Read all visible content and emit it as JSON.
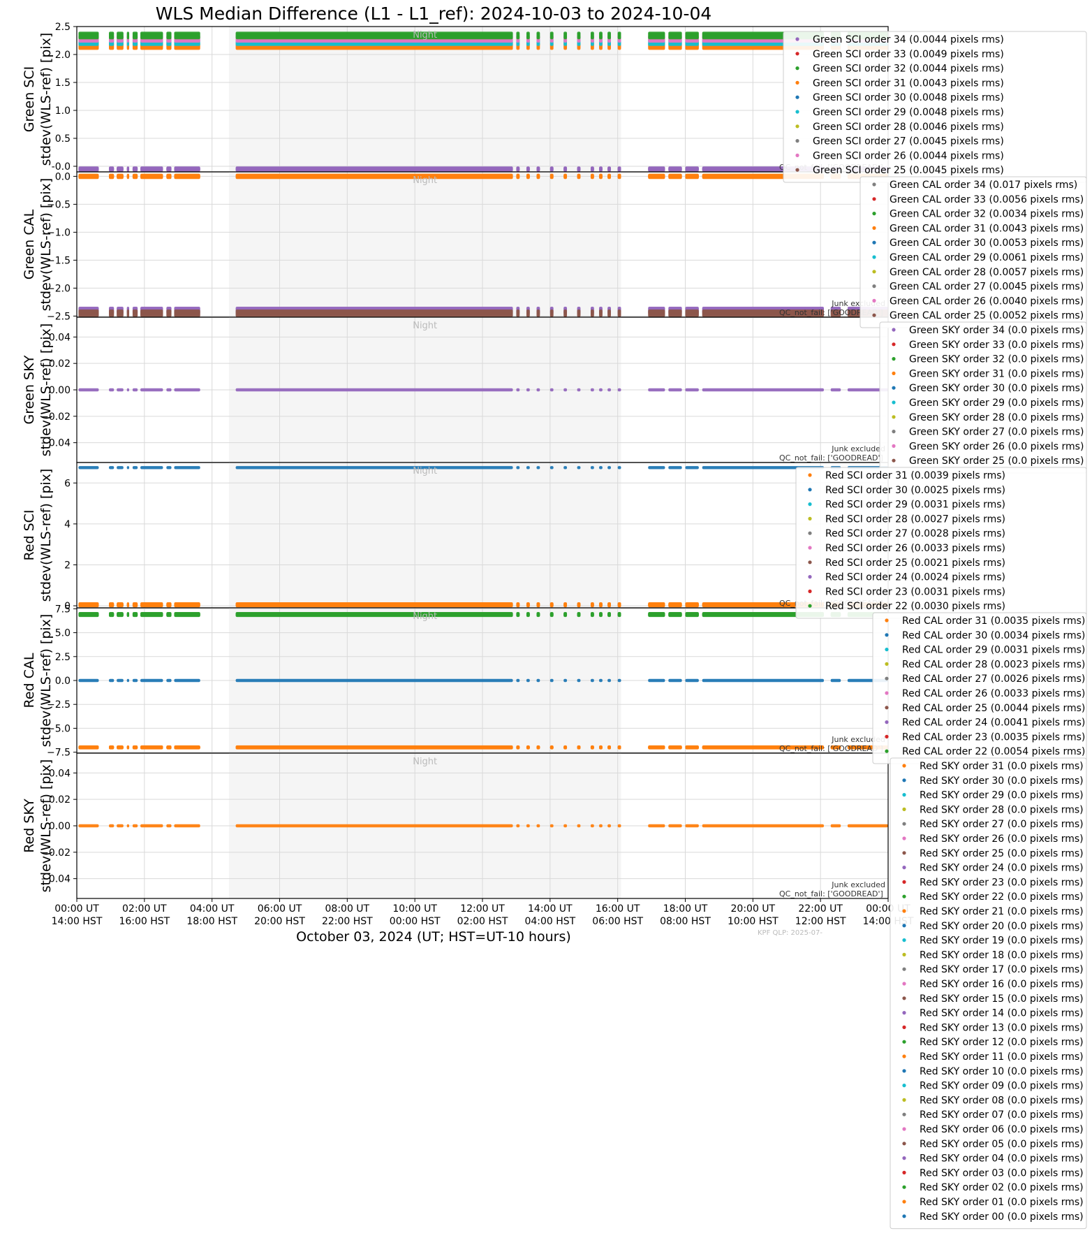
{
  "figure": {
    "title": "WLS Median Difference (L1 - L1_ref): 2024-10-03 to 2024-10-04",
    "xlabel": "October 03, 2024 (UT; HST=UT-10 hours)",
    "xtick_labels_ut": [
      "00:00 UT",
      "02:00 UT",
      "04:00 UT",
      "06:00 UT",
      "08:00 UT",
      "10:00 UT",
      "12:00 UT",
      "14:00 UT",
      "16:00 UT",
      "18:00 UT",
      "20:00 UT",
      "22:00 UT",
      "00:00 UT"
    ],
    "xtick_labels_hst": [
      "14:00 HST",
      "16:00 HST",
      "18:00 HST",
      "20:00 HST",
      "22:00 HST",
      "00:00 HST",
      "02:00 HST",
      "04:00 HST",
      "06:00 HST",
      "08:00 HST",
      "10:00 HST",
      "12:00 HST",
      "14:00 HST"
    ],
    "night_label": "Night",
    "junk_label": "Junk excluded",
    "qc_label": "QC_not_fail: ['GOODREAD']",
    "footer": "KPF QLP: 2025-07-"
  },
  "colors": {
    "blue": "#1f77b4",
    "orange": "#ff7f0e",
    "green": "#2ca02c",
    "red": "#d62728",
    "purple": "#9467bd",
    "brown": "#8c564b",
    "pink": "#e377c2",
    "gray": "#7f7f7f",
    "olive": "#bcbd22",
    "cyan": "#17becf",
    "night_shade": "#f5f5f5",
    "grid": "#d9d9d9"
  },
  "chart_data": [
    {
      "type": "scatter",
      "ylabel": [
        "Green SCI",
        "stdev(WLS-ref) [pix]"
      ],
      "ylim": [
        -0.1,
        2.5
      ],
      "yticks": [
        "-0.0",
        "0.5",
        "1.0",
        "1.5",
        "2.0",
        "2.5"
      ],
      "ytick_values": [
        0.0,
        0.5,
        1.0,
        1.5,
        2.0,
        2.5
      ],
      "xlim_hours": [
        0,
        24
      ],
      "night_hours": [
        4.5,
        16.1
      ],
      "level_groups": [
        {
          "y": 2.15,
          "spread": 0.04,
          "color": "orange"
        },
        {
          "y": 2.22,
          "spread": 0.04,
          "color": "cyan"
        },
        {
          "y": 2.28,
          "spread": 0.04,
          "color": "pink"
        },
        {
          "y": 2.34,
          "spread": 0.04,
          "color": "green"
        },
        {
          "y": -0.05,
          "spread": 0.02,
          "color": "purple"
        }
      ],
      "series": [
        {
          "name": "Green SCI order 34 (0.0044 pixels rms)",
          "color": "purple"
        },
        {
          "name": "Green SCI order 33 (0.0049 pixels rms)",
          "color": "red"
        },
        {
          "name": "Green SCI order 32 (0.0044 pixels rms)",
          "color": "green"
        },
        {
          "name": "Green SCI order 31 (0.0043 pixels rms)",
          "color": "orange"
        },
        {
          "name": "Green SCI order 30 (0.0048 pixels rms)",
          "color": "blue"
        },
        {
          "name": "Green SCI order 29 (0.0048 pixels rms)",
          "color": "cyan"
        },
        {
          "name": "Green SCI order 28 (0.0046 pixels rms)",
          "color": "olive"
        },
        {
          "name": "Green SCI order 27 (0.0045 pixels rms)",
          "color": "gray"
        },
        {
          "name": "Green SCI order 26 (0.0044 pixels rms)",
          "color": "pink"
        },
        {
          "name": "Green SCI order 25 (0.0045 pixels rms)",
          "color": "brown"
        }
      ],
      "legend_left": 1122,
      "show_junk": false
    },
    {
      "type": "scatter",
      "ylabel": [
        "Green CAL",
        "stdev(WLS-ref) [pix]"
      ],
      "ylim": [
        -2.52,
        0.08
      ],
      "yticks": [
        "0.0",
        "−0.5",
        "−1.0",
        "−1.5",
        "−2.0",
        "−2.5"
      ],
      "ytick_values": [
        0.0,
        -0.5,
        -1.0,
        -1.5,
        -2.0,
        -2.5
      ],
      "xlim_hours": [
        0,
        24
      ],
      "night_hours": [
        4.5,
        16.1
      ],
      "level_groups": [
        {
          "y": 0.0,
          "spread": 0.02,
          "color": "orange"
        },
        {
          "y": -2.4,
          "spread": 0.04,
          "color": "purple"
        },
        {
          "y": -2.45,
          "spread": 0.04,
          "color": "brown"
        }
      ],
      "series": [
        {
          "name": "Green CAL order 34 (0.017 pixels rms)",
          "color": "gray"
        },
        {
          "name": "Green CAL order 33 (0.0056 pixels rms)",
          "color": "red"
        },
        {
          "name": "Green CAL order 32 (0.0034 pixels rms)",
          "color": "green"
        },
        {
          "name": "Green CAL order 31 (0.0043 pixels rms)",
          "color": "orange"
        },
        {
          "name": "Green CAL order 30 (0.0053 pixels rms)",
          "color": "blue"
        },
        {
          "name": "Green CAL order 29 (0.0061 pixels rms)",
          "color": "cyan"
        },
        {
          "name": "Green CAL order 28 (0.0057 pixels rms)",
          "color": "olive"
        },
        {
          "name": "Green CAL order 27 (0.0045 pixels rms)",
          "color": "gray"
        },
        {
          "name": "Green CAL order 26 (0.0040 pixels rms)",
          "color": "pink"
        },
        {
          "name": "Green CAL order 25 (0.0052 pixels rms)",
          "color": "brown"
        }
      ],
      "legend_left": 1232,
      "show_junk": true
    },
    {
      "type": "scatter",
      "ylabel": [
        "Green SKY",
        "stdev(WLS-ref) [pix]"
      ],
      "ylim": [
        -0.055,
        0.055
      ],
      "yticks": [
        "0.04",
        "0.02",
        "0.00",
        "−0.02",
        "−0.04"
      ],
      "ytick_values": [
        0.04,
        0.02,
        0.0,
        -0.02,
        -0.04
      ],
      "xlim_hours": [
        0,
        24
      ],
      "night_hours": [
        4.5,
        16.1
      ],
      "level_groups": [
        {
          "y": 0.0,
          "spread": 0.0,
          "color": "purple"
        }
      ],
      "series": [
        {
          "name": "Green SKY order 34 (0.0 pixels rms)",
          "color": "purple"
        },
        {
          "name": "Green SKY order 33 (0.0 pixels rms)",
          "color": "red"
        },
        {
          "name": "Green SKY order 32 (0.0 pixels rms)",
          "color": "green"
        },
        {
          "name": "Green SKY order 31 (0.0 pixels rms)",
          "color": "orange"
        },
        {
          "name": "Green SKY order 30 (0.0 pixels rms)",
          "color": "blue"
        },
        {
          "name": "Green SKY order 29 (0.0 pixels rms)",
          "color": "cyan"
        },
        {
          "name": "Green SKY order 28 (0.0 pixels rms)",
          "color": "olive"
        },
        {
          "name": "Green SKY order 27 (0.0 pixels rms)",
          "color": "gray"
        },
        {
          "name": "Green SKY order 26 (0.0 pixels rms)",
          "color": "pink"
        },
        {
          "name": "Green SKY order 25 (0.0 pixels rms)",
          "color": "brown"
        }
      ],
      "legend_left": 1260,
      "show_junk": true
    },
    {
      "type": "scatter",
      "ylabel": [
        "Red SCI",
        "stdev(WLS-ref) [pix]"
      ],
      "ylim": [
        -0.1,
        7.0
      ],
      "yticks": [
        "6",
        "4",
        "2",
        "0"
      ],
      "ytick_values": [
        6,
        4,
        2,
        0
      ],
      "xlim_hours": [
        0,
        24
      ],
      "night_hours": [
        4.5,
        16.1
      ],
      "level_groups": [
        {
          "y": 6.75,
          "spread": 0.0,
          "color": "blue"
        },
        {
          "y": 0.05,
          "spread": 0.05,
          "color": "orange"
        }
      ],
      "series": [
        {
          "name": "Red SCI order 31 (0.0039 pixels rms)",
          "color": "orange"
        },
        {
          "name": "Red SCI order 30 (0.0025 pixels rms)",
          "color": "blue"
        },
        {
          "name": "Red SCI order 29 (0.0031 pixels rms)",
          "color": "cyan"
        },
        {
          "name": "Red SCI order 28 (0.0027 pixels rms)",
          "color": "olive"
        },
        {
          "name": "Red SCI order 27 (0.0028 pixels rms)",
          "color": "gray"
        },
        {
          "name": "Red SCI order 26 (0.0033 pixels rms)",
          "color": "pink"
        },
        {
          "name": "Red SCI order 25 (0.0021 pixels rms)",
          "color": "brown"
        },
        {
          "name": "Red SCI order 24 (0.0024 pixels rms)",
          "color": "purple"
        },
        {
          "name": "Red SCI order 23 (0.0031 pixels rms)",
          "color": "red"
        },
        {
          "name": "Red SCI order 22 (0.0030 pixels rms)",
          "color": "green"
        }
      ],
      "legend_left": 1140,
      "show_junk": false
    },
    {
      "type": "scatter",
      "ylabel": [
        "Red CAL",
        "stdev(WLS-ref) [pix]"
      ],
      "ylim": [
        -7.6,
        7.6
      ],
      "yticks": [
        "7.5",
        "5.0",
        "2.5",
        "0.0",
        "−2.5",
        "−5.0",
        "−7.5"
      ],
      "ytick_values": [
        7.5,
        5.0,
        2.5,
        0.0,
        -2.5,
        -5.0,
        -7.5
      ],
      "xlim_hours": [
        0,
        24
      ],
      "night_hours": [
        4.5,
        16.1
      ],
      "level_groups": [
        {
          "y": 6.9,
          "spread": 0.1,
          "color": "green"
        },
        {
          "y": 0.0,
          "spread": 0.0,
          "color": "blue"
        },
        {
          "y": -7.0,
          "spread": 0.05,
          "color": "orange"
        }
      ],
      "series": [
        {
          "name": "Red CAL order 31 (0.0035 pixels rms)",
          "color": "orange"
        },
        {
          "name": "Red CAL order 30 (0.0034 pixels rms)",
          "color": "blue"
        },
        {
          "name": "Red CAL order 29 (0.0031 pixels rms)",
          "color": "cyan"
        },
        {
          "name": "Red CAL order 28 (0.0023 pixels rms)",
          "color": "olive"
        },
        {
          "name": "Red CAL order 27 (0.0026 pixels rms)",
          "color": "gray"
        },
        {
          "name": "Red CAL order 26 (0.0033 pixels rms)",
          "color": "pink"
        },
        {
          "name": "Red CAL order 25 (0.0044 pixels rms)",
          "color": "brown"
        },
        {
          "name": "Red CAL order 24 (0.0041 pixels rms)",
          "color": "purple"
        },
        {
          "name": "Red CAL order 23 (0.0035 pixels rms)",
          "color": "red"
        },
        {
          "name": "Red CAL order 22 (0.0054 pixels rms)",
          "color": "green"
        }
      ],
      "legend_left": 1250,
      "show_junk": true
    },
    {
      "type": "scatter",
      "ylabel": [
        "Red SKY",
        "stdev(WLS-ref) [pix]"
      ],
      "ylim": [
        -0.055,
        0.055
      ],
      "yticks": [
        "0.04",
        "0.02",
        "0.00",
        "−0.02",
        "−0.04"
      ],
      "ytick_values": [
        0.04,
        0.02,
        0.0,
        -0.02,
        -0.04
      ],
      "xlim_hours": [
        0,
        24
      ],
      "night_hours": [
        4.5,
        16.1
      ],
      "level_groups": [
        {
          "y": 0.0,
          "spread": 0.0,
          "color": "orange"
        }
      ],
      "series": [
        {
          "name": "Red SKY order 31 (0.0 pixels rms)",
          "color": "orange"
        },
        {
          "name": "Red SKY order 30 (0.0 pixels rms)",
          "color": "blue"
        },
        {
          "name": "Red SKY order 29 (0.0 pixels rms)",
          "color": "cyan"
        },
        {
          "name": "Red SKY order 28 (0.0 pixels rms)",
          "color": "olive"
        },
        {
          "name": "Red SKY order 27 (0.0 pixels rms)",
          "color": "gray"
        },
        {
          "name": "Red SKY order 26 (0.0 pixels rms)",
          "color": "pink"
        },
        {
          "name": "Red SKY order 25 (0.0 pixels rms)",
          "color": "brown"
        },
        {
          "name": "Red SKY order 24 (0.0 pixels rms)",
          "color": "purple"
        },
        {
          "name": "Red SKY order 23 (0.0 pixels rms)",
          "color": "red"
        },
        {
          "name": "Red SKY order 22 (0.0 pixels rms)",
          "color": "green"
        },
        {
          "name": "Red SKY order 21 (0.0 pixels rms)",
          "color": "orange"
        },
        {
          "name": "Red SKY order 20 (0.0 pixels rms)",
          "color": "blue"
        },
        {
          "name": "Red SKY order 19 (0.0 pixels rms)",
          "color": "cyan"
        },
        {
          "name": "Red SKY order 18 (0.0 pixels rms)",
          "color": "olive"
        },
        {
          "name": "Red SKY order 17 (0.0 pixels rms)",
          "color": "gray"
        },
        {
          "name": "Red SKY order 16 (0.0 pixels rms)",
          "color": "pink"
        },
        {
          "name": "Red SKY order 15 (0.0 pixels rms)",
          "color": "brown"
        },
        {
          "name": "Red SKY order 14 (0.0 pixels rms)",
          "color": "purple"
        },
        {
          "name": "Red SKY order 13 (0.0 pixels rms)",
          "color": "red"
        },
        {
          "name": "Red SKY order 12 (0.0 pixels rms)",
          "color": "green"
        },
        {
          "name": "Red SKY order 11 (0.0 pixels rms)",
          "color": "orange"
        },
        {
          "name": "Red SKY order 10 (0.0 pixels rms)",
          "color": "blue"
        },
        {
          "name": "Red SKY order 09 (0.0 pixels rms)",
          "color": "cyan"
        },
        {
          "name": "Red SKY order 08 (0.0 pixels rms)",
          "color": "olive"
        },
        {
          "name": "Red SKY order 07 (0.0 pixels rms)",
          "color": "gray"
        },
        {
          "name": "Red SKY order 06 (0.0 pixels rms)",
          "color": "pink"
        },
        {
          "name": "Red SKY order 05 (0.0 pixels rms)",
          "color": "brown"
        },
        {
          "name": "Red SKY order 04 (0.0 pixels rms)",
          "color": "purple"
        },
        {
          "name": "Red SKY order 03 (0.0 pixels rms)",
          "color": "red"
        },
        {
          "name": "Red SKY order 02 (0.0 pixels rms)",
          "color": "green"
        },
        {
          "name": "Red SKY order 01 (0.0 pixels rms)",
          "color": "orange"
        },
        {
          "name": "Red SKY order 00 (0.0 pixels rms)",
          "color": "blue"
        }
      ],
      "legend_left": 1275,
      "show_junk": true
    }
  ],
  "observation_segments_hours": [
    [
      0.05,
      0.65
    ],
    [
      0.95,
      1.1
    ],
    [
      1.18,
      1.38
    ],
    [
      1.48,
      1.55
    ],
    [
      1.65,
      1.8
    ],
    [
      1.88,
      2.55
    ],
    [
      2.65,
      2.8
    ],
    [
      2.88,
      3.65
    ],
    [
      4.7,
      12.9
    ],
    [
      13.0,
      13.1
    ],
    [
      13.3,
      13.4
    ],
    [
      13.6,
      13.7
    ],
    [
      14.0,
      14.1
    ],
    [
      14.4,
      14.5
    ],
    [
      14.8,
      14.9
    ],
    [
      15.2,
      15.3
    ],
    [
      15.45,
      15.55
    ],
    [
      15.7,
      15.8
    ],
    [
      16.0,
      16.1
    ],
    [
      16.9,
      17.4
    ],
    [
      17.5,
      17.9
    ],
    [
      18.0,
      18.4
    ],
    [
      18.5,
      22.1
    ],
    [
      22.3,
      22.6
    ],
    [
      22.8,
      24.0
    ]
  ]
}
